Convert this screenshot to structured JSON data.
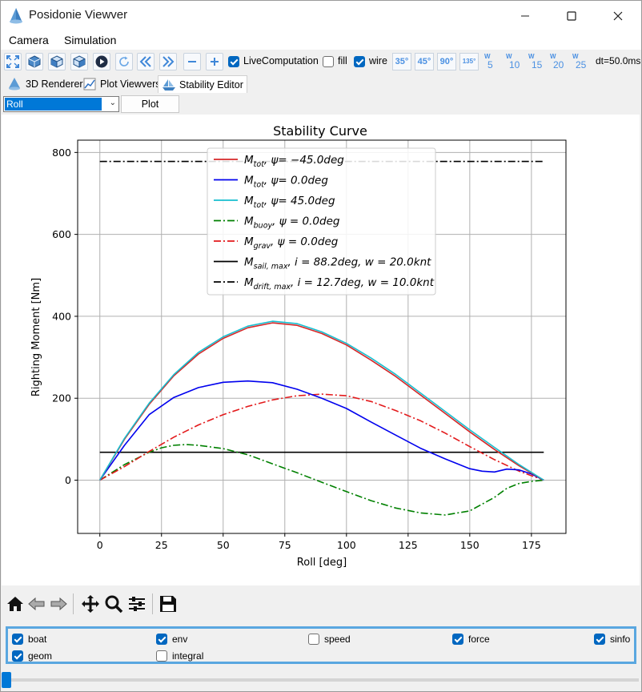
{
  "window": {
    "title": "Posidonie Viewver"
  },
  "menu": [
    "Camera",
    "Simulation"
  ],
  "toolbar": {
    "live_label": "LiveComputation",
    "fill_label": "fill",
    "wire_label": "wire",
    "live_checked": true,
    "fill_checked": false,
    "wire_checked": true,
    "angles": [
      "35°",
      "45°",
      "90°",
      "135°"
    ],
    "wind_prefix": "W",
    "winds": [
      "5",
      "10",
      "15",
      "20",
      "25"
    ],
    "dt_label": "dt=50.0ms"
  },
  "tabs": [
    "3D Renderer",
    "Plot Viewvers",
    "Stability Editor"
  ],
  "active_tab": "Stability Editor",
  "controls": {
    "axis_select": "Roll",
    "plot_button": "Plot"
  },
  "flags": [
    {
      "label": "boat",
      "checked": true
    },
    {
      "label": "env",
      "checked": true
    },
    {
      "label": "speed",
      "checked": false
    },
    {
      "label": "force",
      "checked": true
    },
    {
      "label": "sinfo",
      "checked": true
    },
    {
      "label": "geom",
      "checked": true
    },
    {
      "label": "integral",
      "checked": false
    }
  ],
  "colors": {
    "accent": "#0078d7",
    "tot_neg45": "#d62728",
    "tot_0": "#0000ee",
    "tot_45": "#17becf",
    "buoy": "#008000",
    "grav": "#e31a1c",
    "sail": "#000000",
    "drift": "#000000"
  },
  "chart_data": {
    "type": "line",
    "title": "Stability Curve",
    "xlabel": "Roll [deg]",
    "ylabel": "Righting Moment [Nm]",
    "xlim": [
      -9,
      189
    ],
    "ylim": [
      -130,
      830
    ],
    "xticks": [
      0,
      25,
      50,
      75,
      100,
      125,
      150,
      175
    ],
    "yticks": [
      0,
      200,
      400,
      600,
      800
    ],
    "grid": true,
    "legend_position": "top-center",
    "series": [
      {
        "key": "tot_neg45",
        "name": "M_tot, ψ=-45.0deg",
        "label_main": "M",
        "label_sub": "tot",
        "label_rest": ", ψ= −45.0deg",
        "style": "solid",
        "color": "#d62728",
        "x": [
          0,
          10,
          20,
          30,
          40,
          50,
          60,
          70,
          80,
          90,
          100,
          110,
          120,
          130,
          140,
          150,
          160,
          170,
          180
        ],
        "y": [
          0,
          100,
          185,
          255,
          308,
          346,
          372,
          384,
          378,
          358,
          330,
          293,
          253,
          208,
          163,
          118,
          75,
          35,
          0
        ]
      },
      {
        "key": "tot_0",
        "name": "M_tot, ψ=0.0deg",
        "label_main": "M",
        "label_sub": "tot",
        "label_rest": ", ψ= 0.0deg",
        "style": "solid",
        "color": "#0000ee",
        "x": [
          0,
          10,
          20,
          30,
          40,
          50,
          60,
          70,
          80,
          90,
          100,
          110,
          120,
          130,
          140,
          150,
          155,
          160,
          165,
          170,
          175,
          180
        ],
        "y": [
          0,
          85,
          160,
          202,
          226,
          239,
          242,
          238,
          222,
          200,
          175,
          142,
          110,
          78,
          52,
          28,
          22,
          20,
          27,
          25,
          15,
          0
        ]
      },
      {
        "key": "tot_45",
        "name": "M_tot, ψ=45.0deg",
        "label_main": "M",
        "label_sub": "tot",
        "label_rest": ", ψ= 45.0deg",
        "style": "solid",
        "color": "#17becf",
        "x": [
          0,
          10,
          20,
          30,
          40,
          50,
          60,
          70,
          80,
          90,
          100,
          110,
          120,
          130,
          140,
          150,
          160,
          170,
          180
        ],
        "y": [
          0,
          102,
          188,
          258,
          312,
          350,
          376,
          388,
          382,
          362,
          334,
          298,
          258,
          213,
          168,
          123,
          80,
          38,
          0
        ]
      },
      {
        "key": "buoy",
        "name": "M_buoy, ψ=0.0deg",
        "label_main": "M",
        "label_sub": "buoy",
        "label_rest": ", ψ = 0.0deg",
        "style": "dashdot",
        "color": "#008000",
        "x": [
          0,
          10,
          20,
          25,
          30,
          35,
          40,
          50,
          60,
          70,
          80,
          90,
          100,
          110,
          120,
          130,
          140,
          150,
          160,
          165,
          170,
          175,
          180
        ],
        "y": [
          0,
          38,
          68,
          79,
          85,
          87,
          85,
          77,
          62,
          40,
          18,
          -5,
          -28,
          -50,
          -68,
          -80,
          -85,
          -75,
          -42,
          -20,
          -8,
          -3,
          0
        ]
      },
      {
        "key": "grav",
        "name": "M_grav, ψ=0.0deg",
        "label_main": "M",
        "label_sub": "grav",
        "label_rest": ", ψ = 0.0deg",
        "style": "dashdot",
        "color": "#e31a1c",
        "x": [
          0,
          10,
          20,
          30,
          40,
          50,
          60,
          70,
          80,
          90,
          100,
          110,
          120,
          130,
          140,
          150,
          160,
          170,
          180
        ],
        "y": [
          0,
          33,
          70,
          105,
          135,
          160,
          180,
          196,
          206,
          210,
          206,
          192,
          170,
          145,
          115,
          82,
          50,
          22,
          0
        ]
      },
      {
        "key": "sail",
        "name": "M_sail,max, i=88.2deg, w=20.0knt",
        "label_main": "M",
        "label_sub": "sail, max",
        "label_rest": ", i = 88.2deg, w = 20.0knt",
        "style": "solid",
        "color": "#000000",
        "x": [
          0,
          180
        ],
        "y": [
          68,
          68
        ]
      },
      {
        "key": "drift",
        "name": "M_drift,max, i=12.7deg, w=10.0knt",
        "label_main": "M",
        "label_sub": "drift, max",
        "label_rest": ", i = 12.7deg, w = 10.0knt",
        "style": "dashdot",
        "color": "#000000",
        "x": [
          0,
          180
        ],
        "y": [
          778,
          778
        ]
      }
    ]
  }
}
